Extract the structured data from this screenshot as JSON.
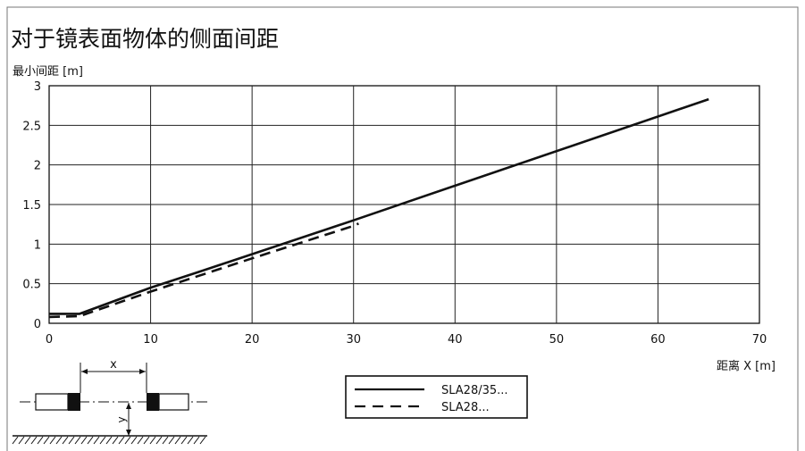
{
  "chart_data": {
    "type": "line",
    "title": "对于镜表面物体的侧面间距",
    "ylabel": "最小间距 [m]",
    "xlabel": "距离 X [m]",
    "xlim": [
      0,
      70
    ],
    "ylim": [
      0,
      3
    ],
    "x_ticks": [
      "0",
      "10",
      "20",
      "30",
      "40",
      "50",
      "60",
      "70"
    ],
    "y_ticks": [
      "0",
      "0.5",
      "1",
      "1.5",
      "2",
      "2.5",
      "3"
    ],
    "grid": true,
    "legend_position": "bottom-center",
    "series": [
      {
        "name": "SLA28/35...",
        "style": "solid",
        "points": [
          [
            0,
            0.12
          ],
          [
            3,
            0.12
          ],
          [
            10,
            0.45
          ],
          [
            15,
            0.66
          ],
          [
            30,
            1.3
          ],
          [
            65,
            2.83
          ]
        ]
      },
      {
        "name": "SLA28...",
        "style": "dashed",
        "points": [
          [
            0,
            0.08
          ],
          [
            3,
            0.09
          ],
          [
            10,
            0.4
          ],
          [
            20,
            0.82
          ],
          [
            30,
            1.23
          ],
          [
            30.5,
            1.26
          ]
        ]
      }
    ]
  },
  "diagram": {
    "distance_label": "x",
    "offset_label": "y"
  },
  "colors": {
    "line": "#111111",
    "grid": "#222222",
    "background": "#ffffff"
  }
}
